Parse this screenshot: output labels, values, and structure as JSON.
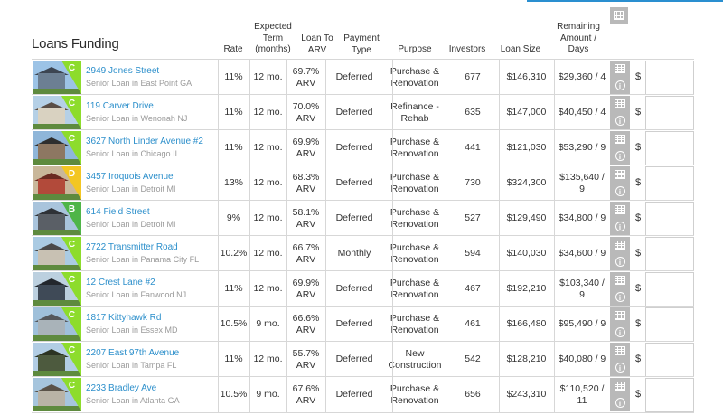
{
  "title": "Loans Funding",
  "headers": {
    "rate": "Rate",
    "term": [
      "Expected",
      "Term",
      "(months)"
    ],
    "ltv": [
      "Loan To",
      "ARV"
    ],
    "payment": [
      "Payment",
      "Type"
    ],
    "purpose": "Purpose",
    "investors": "Investors",
    "size": "Loan Size",
    "remaining": [
      "Remaining",
      "Amount /",
      "Days"
    ]
  },
  "icons": {
    "table": "table-icon",
    "info": "info-icon"
  },
  "currency_symbol": "$",
  "loans": [
    {
      "grade": "C",
      "address": "2949 Jones Street",
      "subtitle": "Senior Loan in East Point GA",
      "rate": "11%",
      "term": "12 mo.",
      "ltv": [
        "69.7%",
        "ARV"
      ],
      "payment": "Deferred",
      "purpose": [
        "Purchase &",
        "Renovation"
      ],
      "investors": "677",
      "size": "$146,310",
      "remaining": [
        "$29,360 / 4"
      ]
    },
    {
      "grade": "C",
      "address": "119 Carver Drive",
      "subtitle": "Senior Loan in Wenonah NJ",
      "rate": "11%",
      "term": "12 mo.",
      "ltv": [
        "70.0%",
        "ARV"
      ],
      "payment": "Deferred",
      "purpose": [
        "Refinance -",
        "Rehab"
      ],
      "investors": "635",
      "size": "$147,000",
      "remaining": [
        "$40,450 / 4"
      ]
    },
    {
      "grade": "C",
      "address": "3627 North Linder Avenue #2",
      "subtitle": "Senior Loan in Chicago IL",
      "rate": "11%",
      "term": "12 mo.",
      "ltv": [
        "69.9%",
        "ARV"
      ],
      "payment": "Deferred",
      "purpose": [
        "Purchase &",
        "Renovation"
      ],
      "investors": "441",
      "size": "$121,030",
      "remaining": [
        "$53,290 / 9"
      ]
    },
    {
      "grade": "D",
      "address": "3457 Iroquois Avenue",
      "subtitle": "Senior Loan in Detroit MI",
      "rate": "13%",
      "term": "12 mo.",
      "ltv": [
        "68.3%",
        "ARV"
      ],
      "payment": "Deferred",
      "purpose": [
        "Purchase &",
        "Renovation"
      ],
      "investors": "730",
      "size": "$324,300",
      "remaining": [
        "$135,640 /",
        "9"
      ]
    },
    {
      "grade": "B",
      "address": "614 Field Street",
      "subtitle": "Senior Loan in Detroit MI",
      "rate": "9%",
      "term": "12 mo.",
      "ltv": [
        "58.1%",
        "ARV"
      ],
      "payment": "Deferred",
      "purpose": [
        "Purchase &",
        "Renovation"
      ],
      "investors": "527",
      "size": "$129,490",
      "remaining": [
        "$34,800 / 9"
      ]
    },
    {
      "grade": "C",
      "address": "2722 Transmitter Road",
      "subtitle": "Senior Loan in Panama City FL",
      "rate": "10.2%",
      "term": "12 mo.",
      "ltv": [
        "66.7%",
        "ARV"
      ],
      "payment": "Monthly",
      "purpose": [
        "Purchase &",
        "Renovation"
      ],
      "investors": "594",
      "size": "$140,030",
      "remaining": [
        "$34,600 / 9"
      ]
    },
    {
      "grade": "C",
      "address": "12 Crest Lane #2",
      "subtitle": "Senior Loan in Fanwood NJ",
      "rate": "11%",
      "term": "12 mo.",
      "ltv": [
        "69.9%",
        "ARV"
      ],
      "payment": "Deferred",
      "purpose": [
        "Purchase &",
        "Renovation"
      ],
      "investors": "467",
      "size": "$192,210",
      "remaining": [
        "$103,340 /",
        "9"
      ]
    },
    {
      "grade": "C",
      "address": "1817 Kittyhawk Rd",
      "subtitle": "Senior Loan in Essex MD",
      "rate": "10.5%",
      "term": "9 mo.",
      "ltv": [
        "66.6%",
        "ARV"
      ],
      "payment": "Deferred",
      "purpose": [
        "Purchase &",
        "Renovation"
      ],
      "investors": "461",
      "size": "$166,480",
      "remaining": [
        "$95,490 / 9"
      ]
    },
    {
      "grade": "C",
      "address": "2207 East 97th Avenue",
      "subtitle": "Senior Loan in Tampa FL",
      "rate": "11%",
      "term": "12 mo.",
      "ltv": [
        "55.7%",
        "ARV"
      ],
      "payment": "Deferred",
      "purpose": [
        "New",
        "Construction"
      ],
      "investors": "542",
      "size": "$128,210",
      "remaining": [
        "$40,080 / 9"
      ]
    },
    {
      "grade": "C",
      "address": "2233 Bradley Ave",
      "subtitle": "Senior Loan in Atlanta GA",
      "rate": "10.5%",
      "term": "9 mo.",
      "ltv": [
        "67.6%",
        "ARV"
      ],
      "payment": "Deferred",
      "purpose": [
        "Purchase &",
        "Renovation"
      ],
      "investors": "656",
      "size": "$243,310",
      "remaining": [
        "$110,520 /",
        "11"
      ]
    }
  ],
  "colors": {
    "link": "#2c8fcb",
    "gradeTab": "#8ddc2c",
    "gradeC": "#8ddc2c",
    "gradeD": "#f3c623",
    "gradeB": "#4fb548",
    "iconBg": "#b9b9b9"
  }
}
